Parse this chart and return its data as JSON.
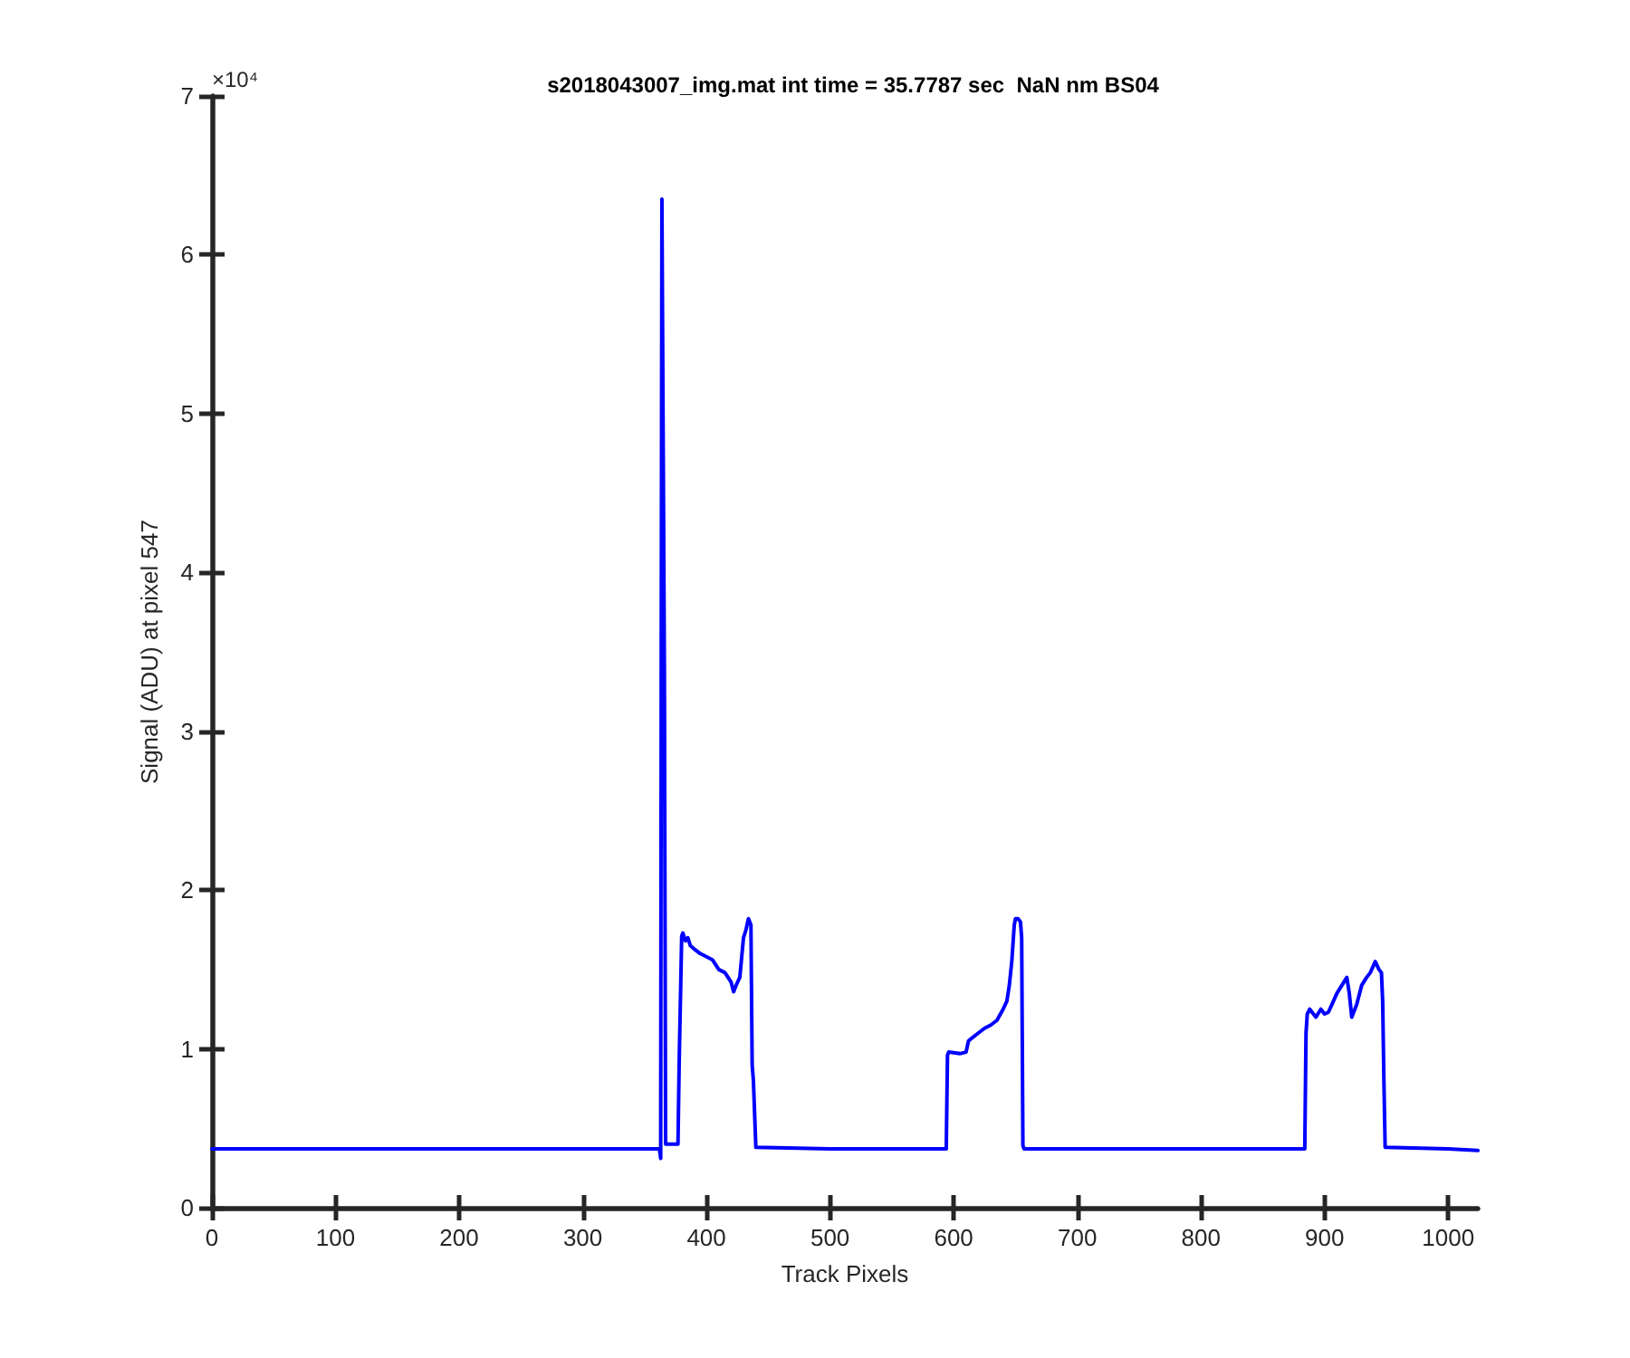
{
  "chart_data": {
    "type": "line",
    "title": "s2018043007_img.mat int time = 35.7787 sec  NaN nm BS04",
    "xlabel": "Track Pixels",
    "ylabel": "Signal (ADU) at pixel 547",
    "annotations": [
      "×10⁴"
    ],
    "x": [
      0,
      100,
      200,
      300,
      362,
      363,
      363.5,
      364,
      365,
      366,
      366.5,
      367,
      368,
      377,
      378,
      380,
      381,
      383,
      385,
      387,
      390,
      395,
      400,
      405,
      410,
      415,
      420,
      422,
      424,
      427,
      430,
      432,
      434,
      436,
      437,
      438,
      440,
      500,
      594,
      595,
      596,
      605,
      610,
      612,
      615,
      620,
      625,
      630,
      635,
      640,
      643,
      645,
      647,
      649,
      650,
      652,
      654,
      655,
      656,
      657,
      700,
      800,
      884,
      885,
      886,
      888,
      893,
      897,
      900,
      903,
      906,
      910,
      914,
      918,
      920,
      922,
      926,
      930,
      934,
      937,
      941,
      944,
      946,
      947,
      948,
      949,
      1000,
      1024
    ],
    "series": [
      {
        "color": "#0000ff",
        "values": [
          0.37,
          0.37,
          0.37,
          0.37,
          0.37,
          0.31,
          3.7,
          6.35,
          6.35,
          3.4,
          3.4,
          0.4,
          0.4,
          0.4,
          0.93,
          1.71,
          1.73,
          1.68,
          1.7,
          1.65,
          1.63,
          1.6,
          1.58,
          1.56,
          1.5,
          1.48,
          1.42,
          1.36,
          1.4,
          1.45,
          1.7,
          1.75,
          1.82,
          1.78,
          0.9,
          0.8,
          0.38,
          0.37,
          0.37,
          0.96,
          0.98,
          0.97,
          0.98,
          1.05,
          1.07,
          1.1,
          1.13,
          1.15,
          1.18,
          1.25,
          1.3,
          1.4,
          1.55,
          1.78,
          1.82,
          1.82,
          1.8,
          1.7,
          0.39,
          0.37,
          0.37,
          0.37,
          0.37,
          1.1,
          1.22,
          1.25,
          1.2,
          1.25,
          1.22,
          1.23,
          1.28,
          1.35,
          1.4,
          1.45,
          1.35,
          1.2,
          1.28,
          1.4,
          1.45,
          1.48,
          1.55,
          1.5,
          1.48,
          1.3,
          0.8,
          0.38,
          0.37,
          0.36
        ]
      }
    ],
    "xlim": [
      0,
      1024
    ],
    "xticks": [
      0,
      100,
      200,
      300,
      400,
      500,
      600,
      700,
      800,
      900,
      1000
    ],
    "ylim": [
      0,
      7
    ],
    "yticks": [
      0,
      1,
      2,
      3,
      4,
      5,
      6,
      7
    ],
    "grid": false,
    "marker": "none",
    "line_style": "solid"
  }
}
